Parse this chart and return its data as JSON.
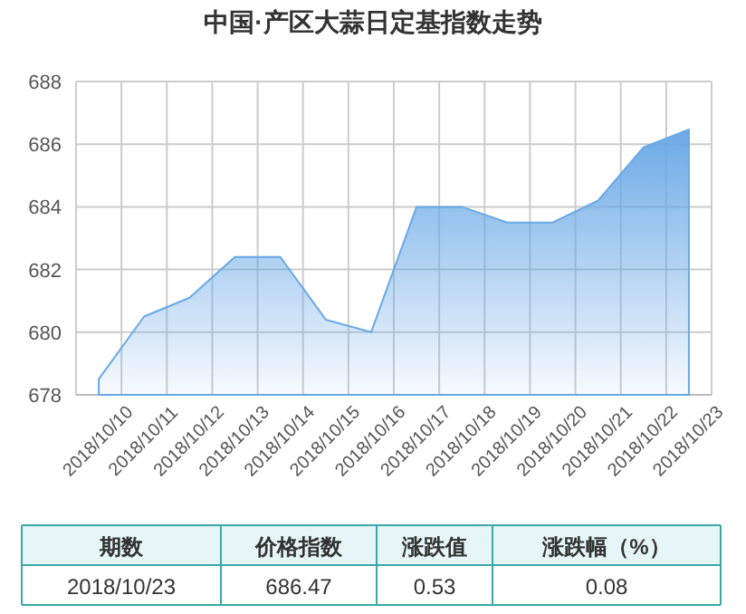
{
  "chart_data": {
    "type": "area",
    "title": "中国·产区大蒜日定基指数走势",
    "categories": [
      "2018/10/10",
      "2018/10/11",
      "2018/10/12",
      "2018/10/13",
      "2018/10/14",
      "2018/10/15",
      "2018/10/16",
      "2018/10/17",
      "2018/10/18",
      "2018/10/19",
      "2018/10/20",
      "2018/10/21",
      "2018/10/22",
      "2018/10/23"
    ],
    "series": [
      {
        "color": "#6aa9e6",
        "values": [
          678.5,
          680.5,
          681.1,
          682.4,
          682.4,
          680.4,
          680.0,
          684.0,
          684.0,
          683.5,
          683.5,
          684.2,
          685.9,
          686.47
        ]
      }
    ],
    "ylim": [
      678,
      688
    ],
    "yticks": [
      678,
      680,
      682,
      684,
      686,
      688
    ],
    "grid": true,
    "annotations": [
      "期数",
      "价格指数",
      "涨跌值",
      "涨跌幅（%）",
      "2018/10/23",
      "686.47",
      "0.53",
      "0.08"
    ]
  }
}
